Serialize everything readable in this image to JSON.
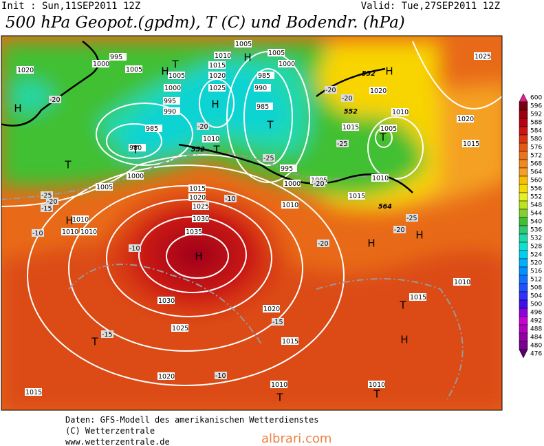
{
  "header": {
    "init": "Init : Sun,11SEP2011 12Z",
    "valid": "Valid: Tue,27SEP2011 12Z",
    "title": "500 hPa Geopot.(gpdm), T (C) und Bodendr. (hPa)"
  },
  "map": {
    "isobar_labels": [
      1020,
      1000,
      995,
      1005,
      1005,
      1005,
      1010,
      1015,
      1020,
      1025,
      1000,
      995,
      990,
      985,
      980,
      1010,
      1000,
      1005,
      1010,
      1010,
      1010,
      1015,
      1020,
      1025,
      1030,
      1035,
      1030,
      1025,
      1020,
      1015,
      1020,
      1015,
      1010,
      1010,
      1010,
      1015,
      1010,
      1015,
      1010,
      1005,
      1010,
      1015,
      1020,
      1025,
      1020,
      1015,
      1000,
      1005,
      985,
      990,
      985,
      995,
      1000,
      1005
    ],
    "centers": [
      "H",
      "H",
      "H",
      "T",
      "H",
      "T",
      "T",
      "T",
      "H",
      "H",
      "T",
      "H",
      "H",
      "T",
      "H",
      "T",
      "T",
      "T",
      "T",
      "H"
    ],
    "temperature_labels": [
      -20,
      -20,
      -20,
      -25,
      -25,
      -20,
      -25,
      -20,
      -15,
      -10,
      -10,
      -10,
      -20,
      -20,
      -25,
      -20,
      -15,
      -15,
      -10
    ],
    "contour_labels": [
      552,
      552,
      552,
      564
    ]
  },
  "colorbar": {
    "levels": [
      600,
      596,
      592,
      588,
      584,
      580,
      576,
      572,
      568,
      564,
      560,
      556,
      552,
      548,
      544,
      540,
      536,
      532,
      528,
      524,
      520,
      516,
      512,
      508,
      504,
      500,
      496,
      492,
      488,
      484,
      480,
      476
    ],
    "colors": [
      "#e0208a",
      "#7a0010",
      "#9a0012",
      "#b80012",
      "#cc1410",
      "#dc3410",
      "#e45810",
      "#ec7418",
      "#f08a1e",
      "#f4a020",
      "#f8c000",
      "#f4dc00",
      "#e8f020",
      "#b8e420",
      "#80d030",
      "#40c030",
      "#30c878",
      "#20d8a8",
      "#10e0d0",
      "#00d0f0",
      "#00b0ff",
      "#0090ff",
      "#1070ff",
      "#2050ff",
      "#3030ff",
      "#4010e8",
      "#8c00e0",
      "#c800d4",
      "#b000c0",
      "#9400a6",
      "#7a0090",
      "#5a006e"
    ]
  },
  "footer": {
    "line1": "Daten: GFS-Modell des amerikanischen Wetterdienstes",
    "line2": "(C) Wetterzentrale",
    "line3": "www.wetterzentrale.de",
    "watermark": "albrari.com"
  }
}
